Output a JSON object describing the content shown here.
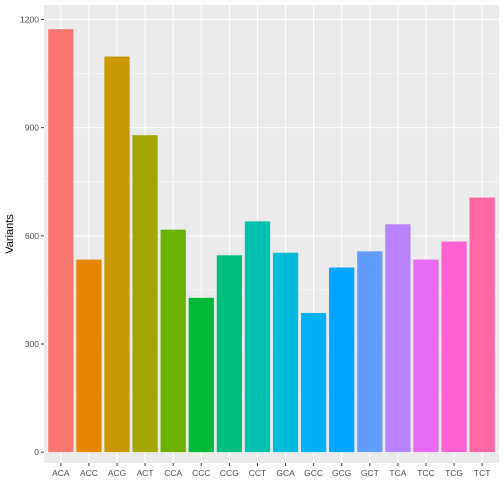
{
  "chart_data": {
    "type": "bar",
    "title": "",
    "xlabel": "",
    "ylabel": "Variants",
    "ylim": [
      -30,
      1240
    ],
    "yticks": [
      0,
      300,
      600,
      900,
      1200
    ],
    "grid": true,
    "legend": "none",
    "categories": [
      "ACA",
      "ACC",
      "ACG",
      "ACT",
      "CCA",
      "CCC",
      "CCG",
      "CCT",
      "GCA",
      "GCC",
      "GCG",
      "GCT",
      "TCA",
      "TCC",
      "TCG",
      "TCT"
    ],
    "values": [
      1173,
      534,
      1097,
      879,
      617,
      428,
      546,
      640,
      553,
      386,
      512,
      557,
      632,
      534,
      584,
      706
    ],
    "colors": [
      "#F8766D",
      "#E58700",
      "#C99800",
      "#A3A500",
      "#6BB100",
      "#00BA38",
      "#00BF7D",
      "#00C0AF",
      "#00BCD8",
      "#00B0F6",
      "#00A5FF",
      "#619CFF",
      "#B983FF",
      "#E76BF3",
      "#FD61D1",
      "#FF67A4"
    ],
    "panel_background": "#EBEBEB",
    "gridline_color": "#FFFFFF"
  }
}
